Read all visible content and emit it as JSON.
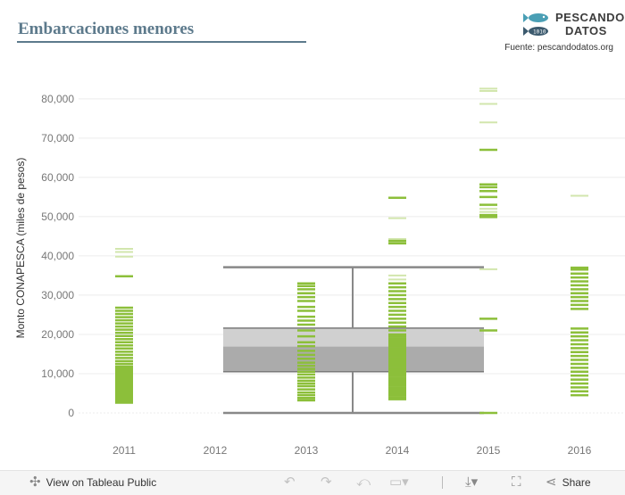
{
  "header": {
    "title": "Embarcaciones  menores",
    "logo_line1": "PESCANDO",
    "logo_line2": "DATOS",
    "source": "Fuente: pescandodatos.org"
  },
  "colors": {
    "title": "#5d7a8c",
    "mark_dark": "#8cbf3a",
    "mark_light": "#d2e6ad",
    "box_upper": "#d0d0d0",
    "box_lower": "#ababab",
    "whisker": "#888888",
    "axis_text": "#777777",
    "gridline": "#ececec"
  },
  "footer": {
    "view_label": "View on Tableau Public",
    "share_label": "Share"
  },
  "chart_data": {
    "type": "box-plot with strip marks",
    "ylabel": "Monto CONAPESCA (miles de pesos)",
    "xlabel": "",
    "ylim": [
      -5000,
      87000
    ],
    "yticks": [
      0,
      10000,
      20000,
      30000,
      40000,
      50000,
      60000,
      70000,
      80000
    ],
    "ytick_labels": [
      "0",
      "10,000",
      "20,000",
      "30,000",
      "40,000",
      "50,000",
      "60,000",
      "70,000",
      "80,000"
    ],
    "categories": [
      "2011",
      "2012",
      "2013",
      "2014",
      "2015",
      "2016"
    ],
    "box": {
      "spans": [
        "2012",
        "2014"
      ],
      "whisker_low": 0,
      "q1": 10500,
      "median": 16900,
      "q3": 21600,
      "whisker_high": 37100
    },
    "series": [
      {
        "category": "2011",
        "values": [
          2600,
          3000,
          3400,
          3800,
          4200,
          4600,
          5000,
          5400,
          5800,
          6200,
          6600,
          7000,
          7400,
          7800,
          8200,
          8600,
          9000,
          9400,
          9800,
          10200,
          10600,
          11000,
          11400,
          11800,
          12500,
          13200,
          14000,
          14800,
          15600,
          16400,
          17200,
          18000,
          18800,
          19600,
          20400,
          21200,
          22000,
          22800,
          23600,
          24400,
          25200,
          26000,
          26800,
          34800
        ],
        "light_values": [
          39800,
          41000,
          41800
        ]
      },
      {
        "category": "2012",
        "values": [],
        "light_values": []
      },
      {
        "category": "2013",
        "values": [
          3200,
          3800,
          4500,
          5200,
          6000,
          6800,
          7500,
          8200,
          9000,
          9800,
          10500,
          11200,
          12000,
          12800,
          13800,
          14800,
          15800,
          17000,
          18000,
          19500,
          21000,
          22500,
          23500,
          24500,
          26000,
          27000,
          28500,
          29500,
          30500,
          31500,
          32300,
          33000
        ],
        "light_values": []
      },
      {
        "category": "2014",
        "values": [
          3500,
          4000,
          4500,
          5000,
          5500,
          6000,
          6500,
          7000,
          7500,
          8000,
          8500,
          9000,
          9500,
          10000,
          10500,
          11000,
          11500,
          12000,
          12500,
          13000,
          13500,
          14000,
          14500,
          15000,
          15500,
          16000,
          16500,
          17000,
          17500,
          18000,
          18500,
          19000,
          19500,
          20000,
          21000,
          22000,
          23000,
          24000,
          25000,
          26000,
          27000,
          28000,
          29000,
          30000,
          31000,
          32000,
          33000,
          43200,
          43800,
          54800
        ],
        "light_values": [
          34000,
          35000,
          44300,
          49600
        ]
      },
      {
        "category": "2015",
        "values": [
          0,
          21000,
          24000,
          49900,
          50400,
          53000,
          55000,
          56500,
          57500,
          58200,
          67000
        ],
        "light_values": [
          36600,
          51200,
          52000,
          74000,
          78700,
          82000,
          82600
        ]
      },
      {
        "category": "2016",
        "values": [
          4500,
          5500,
          6500,
          7500,
          8500,
          9500,
          10500,
          11500,
          12500,
          13500,
          14500,
          15500,
          16500,
          17500,
          18500,
          19500,
          20500,
          21500,
          26500,
          27500,
          28500,
          29500,
          30500,
          31500,
          32500,
          33500,
          34500,
          35500,
          36500,
          37000
        ],
        "light_values": [
          55300
        ]
      }
    ]
  }
}
